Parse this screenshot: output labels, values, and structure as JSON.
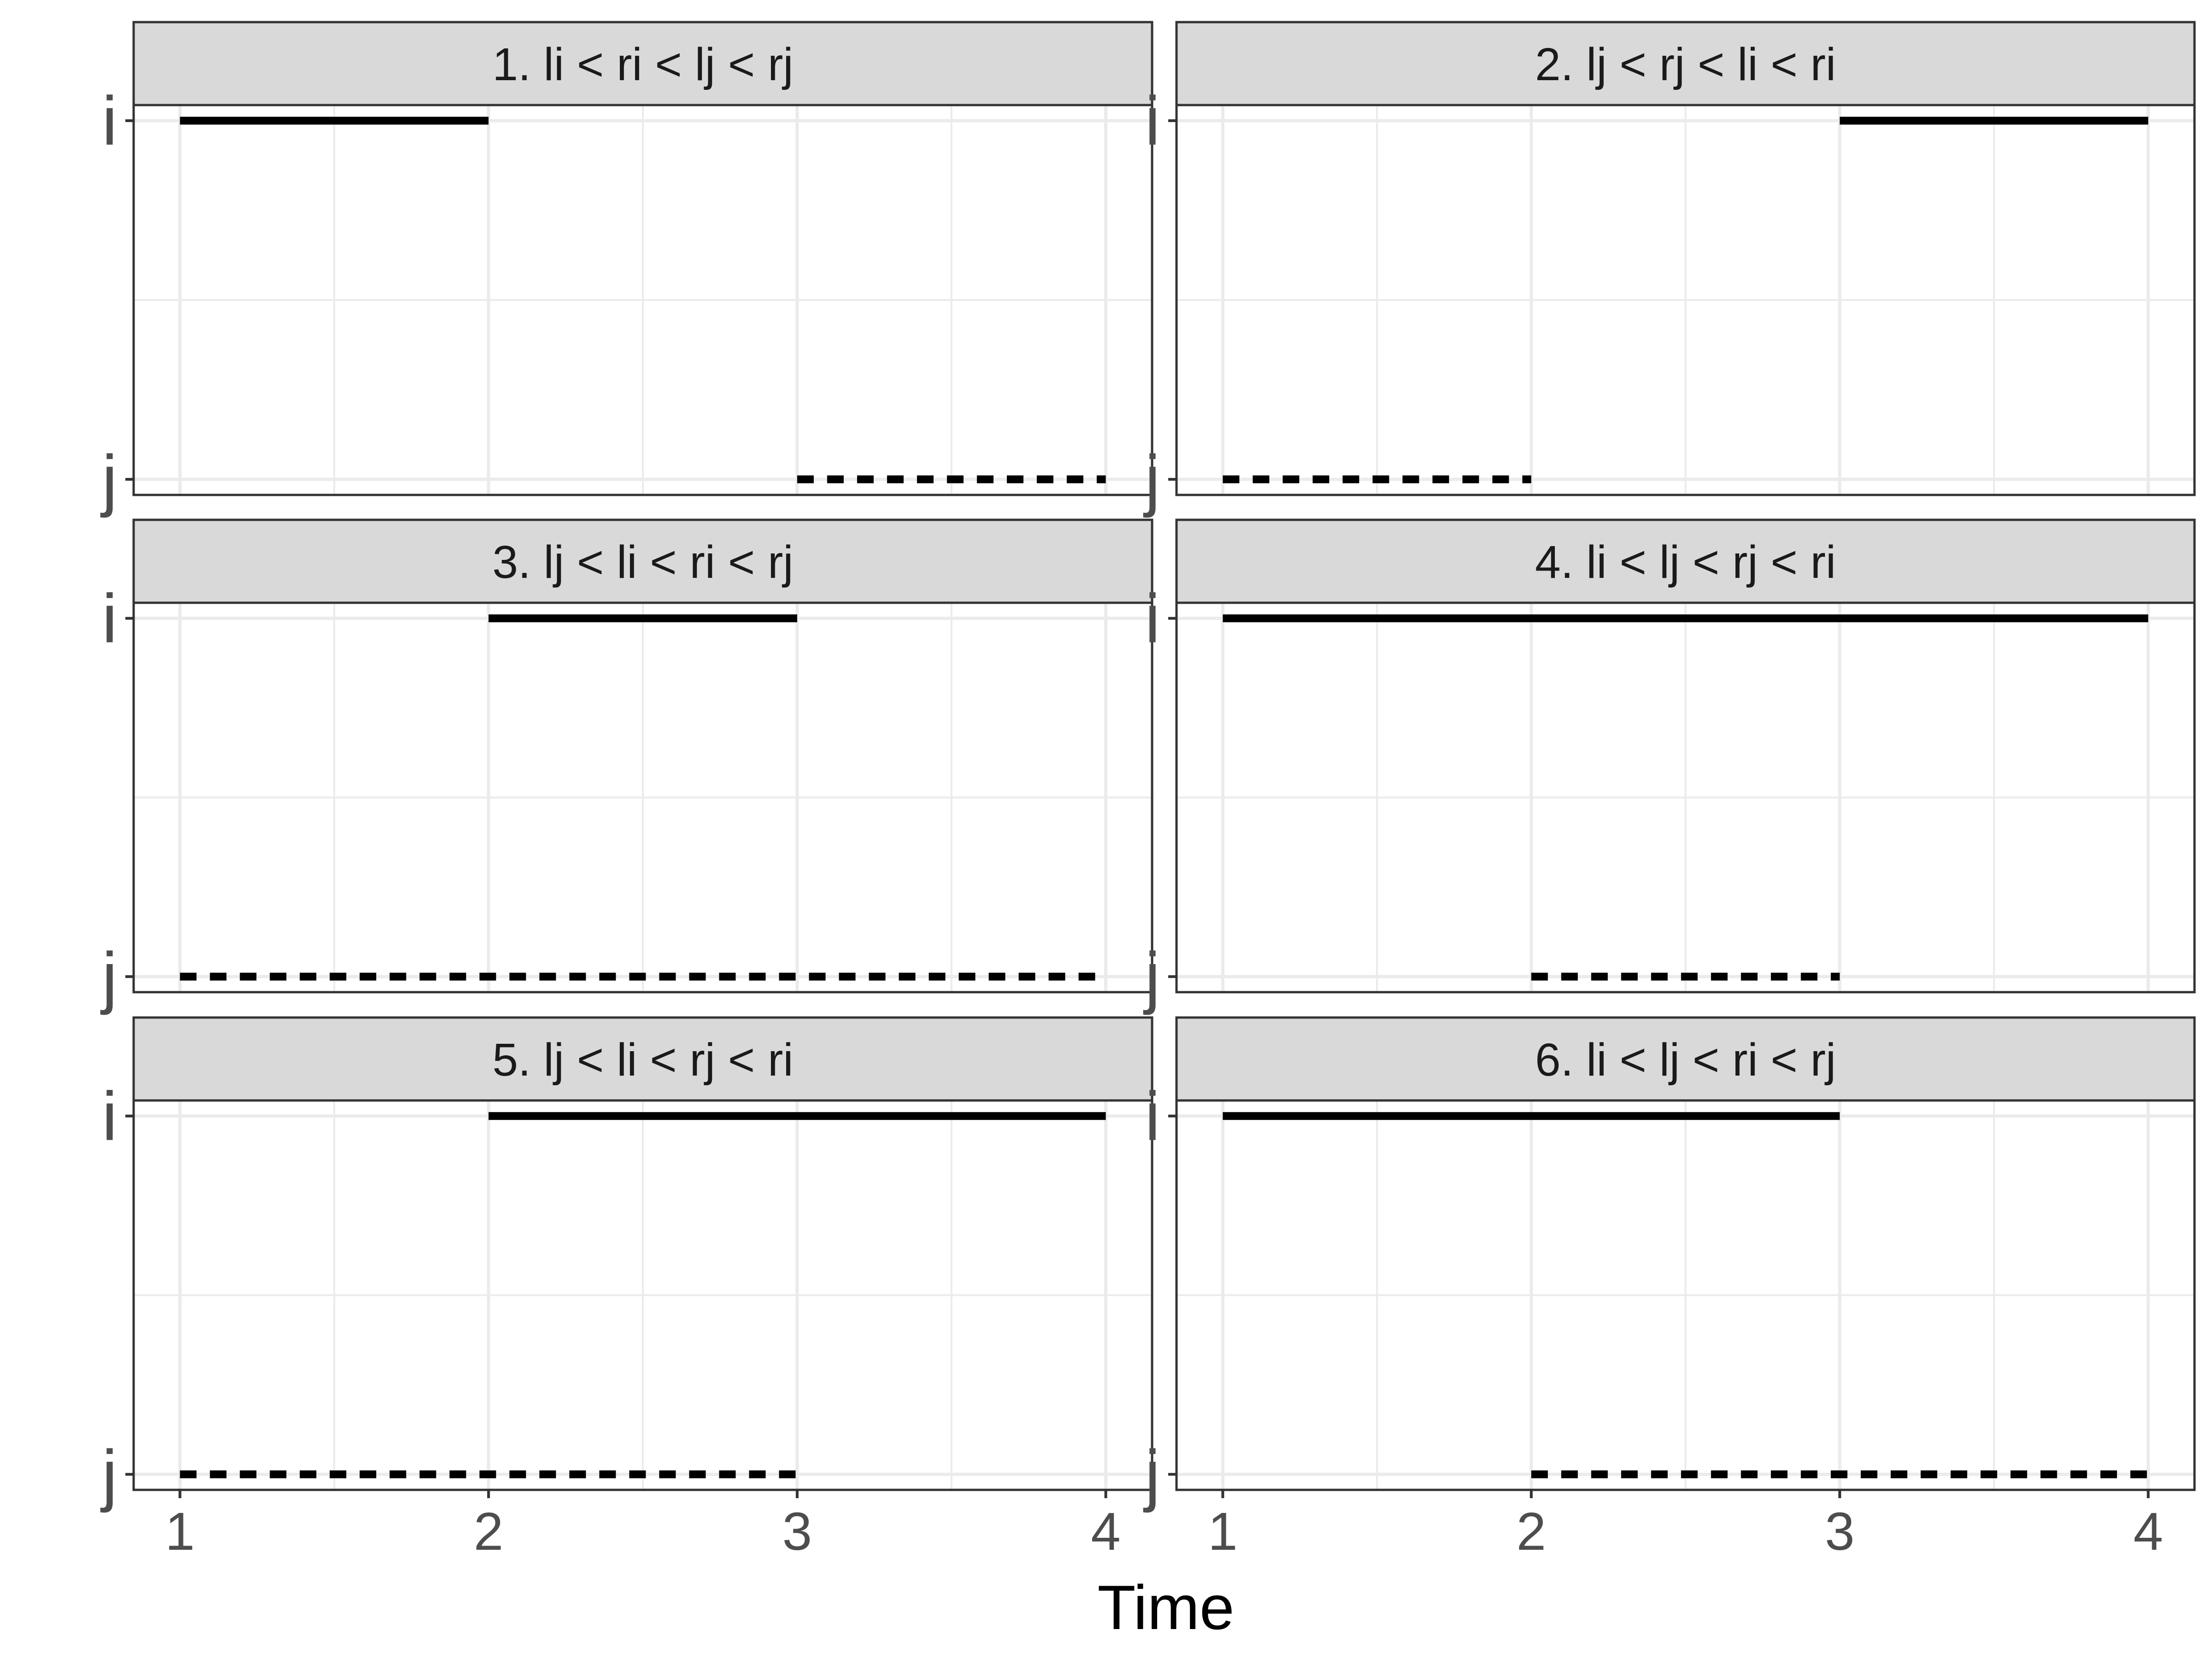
{
  "chart_data": {
    "type": "faceted-segments",
    "xlabel": "Time",
    "x_ticks": [
      1,
      2,
      3,
      4
    ],
    "xlim": [
      0.85,
      4.15
    ],
    "y_categories": [
      "i",
      "j"
    ],
    "grid": true,
    "colors": {
      "strip_fill": "#d9d9d9",
      "grid": "#ebebeb",
      "segment": "#000000",
      "tick_text": "#4d4d4d"
    },
    "panels": [
      {
        "label": "1. li < ri < lj < rj",
        "segments": [
          {
            "y": "i",
            "x_start": 1,
            "x_end": 2,
            "linetype": "solid"
          },
          {
            "y": "j",
            "x_start": 3,
            "x_end": 4,
            "linetype": "dashed"
          }
        ]
      },
      {
        "label": "2. lj < rj < li < ri",
        "segments": [
          {
            "y": "i",
            "x_start": 3,
            "x_end": 4,
            "linetype": "solid"
          },
          {
            "y": "j",
            "x_start": 1,
            "x_end": 2,
            "linetype": "dashed"
          }
        ]
      },
      {
        "label": "3. lj < li < ri < rj",
        "segments": [
          {
            "y": "i",
            "x_start": 2,
            "x_end": 3,
            "linetype": "solid"
          },
          {
            "y": "j",
            "x_start": 1,
            "x_end": 4,
            "linetype": "dashed"
          }
        ]
      },
      {
        "label": "4. li < lj < rj < ri",
        "segments": [
          {
            "y": "i",
            "x_start": 1,
            "x_end": 4,
            "linetype": "solid"
          },
          {
            "y": "j",
            "x_start": 2,
            "x_end": 3,
            "linetype": "dashed"
          }
        ]
      },
      {
        "label": "5. lj < li < rj < ri",
        "segments": [
          {
            "y": "i",
            "x_start": 2,
            "x_end": 4,
            "linetype": "solid"
          },
          {
            "y": "j",
            "x_start": 1,
            "x_end": 3,
            "linetype": "dashed"
          }
        ]
      },
      {
        "label": "6. li < lj < ri < rj",
        "segments": [
          {
            "y": "i",
            "x_start": 1,
            "x_end": 3,
            "linetype": "solid"
          },
          {
            "y": "j",
            "x_start": 2,
            "x_end": 4,
            "linetype": "dashed"
          }
        ]
      }
    ]
  }
}
